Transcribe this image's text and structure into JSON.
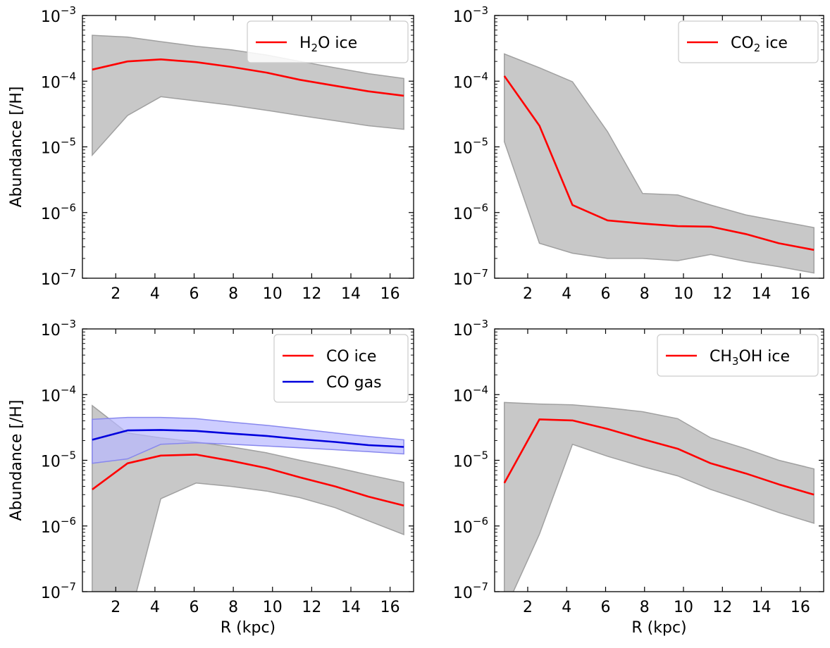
{
  "figure": {
    "type": "line",
    "layout": "2x2 grid of log-scale line charts with shaded ranges"
  },
  "chart_data": [
    {
      "type": "line",
      "id": "h2o",
      "title": "",
      "xlabel": "",
      "ylabel": "Abundance [/H]",
      "ylim_exp": [
        -7,
        -3
      ],
      "xlim": [
        0.3,
        17.2
      ],
      "xticks": [
        "2",
        "4",
        "6",
        "8",
        "10",
        "12",
        "14",
        "16"
      ],
      "yticks": [
        {
          "base": "10",
          "exp": "−7"
        },
        {
          "base": "10",
          "exp": "−6"
        },
        {
          "base": "10",
          "exp": "−5"
        },
        {
          "base": "10",
          "exp": "−4"
        },
        {
          "base": "10",
          "exp": "−3"
        }
      ],
      "legend_position": "top-right",
      "series": [
        {
          "name": "H2O ice",
          "label_parts": [
            "H",
            "2",
            "O ice"
          ],
          "color": "#ff0000",
          "band_color": "#c8c8c8",
          "band_edge": "#a0a0a0",
          "x": [
            0.8,
            2.6,
            4.3,
            6.1,
            7.9,
            9.7,
            11.4,
            13.2,
            14.9,
            16.7
          ],
          "y": [
            0.00015,
            0.0002,
            0.000215,
            0.000195,
            0.000165,
            0.000135,
            0.000105,
            8.5e-05,
            7e-05,
            6e-05
          ],
          "upper": [
            0.0005,
            0.00047,
            0.0004,
            0.00034,
            0.0003,
            0.00025,
            0.0002,
            0.00016,
            0.00013,
            0.00011
          ],
          "lower": [
            7.5e-06,
            3e-05,
            5.8e-05,
            5e-05,
            4.3e-05,
            3.6e-05,
            3e-05,
            2.5e-05,
            2.1e-05,
            1.85e-05
          ]
        }
      ]
    },
    {
      "type": "line",
      "id": "co2",
      "title": "",
      "xlabel": "",
      "ylabel": "",
      "ylim_exp": [
        -7,
        -3
      ],
      "xlim": [
        0.3,
        17.2
      ],
      "xticks": [
        "2",
        "4",
        "6",
        "8",
        "10",
        "12",
        "14",
        "16"
      ],
      "yticks": [
        {
          "base": "10",
          "exp": "−7"
        },
        {
          "base": "10",
          "exp": "−6"
        },
        {
          "base": "10",
          "exp": "−5"
        },
        {
          "base": "10",
          "exp": "−4"
        },
        {
          "base": "10",
          "exp": "−3"
        }
      ],
      "legend_position": "top-right",
      "series": [
        {
          "name": "CO2 ice",
          "label_parts": [
            "CO",
            "2",
            " ice"
          ],
          "color": "#ff0000",
          "band_color": "#c8c8c8",
          "band_edge": "#a0a0a0",
          "x": [
            0.8,
            2.6,
            4.3,
            6.1,
            7.9,
            9.7,
            11.4,
            13.2,
            14.9,
            16.7
          ],
          "y": [
            0.00012,
            2.1e-05,
            1.3e-06,
            7.6e-07,
            6.8e-07,
            6.2e-07,
            6.1e-07,
            4.7e-07,
            3.4e-07,
            2.7e-07
          ],
          "upper": [
            0.00026,
            0.00016,
            9.8e-05,
            1.7e-05,
            1.95e-06,
            1.85e-06,
            1.3e-06,
            9.2e-07,
            7.4e-07,
            5.9e-07
          ],
          "lower": [
            1.2e-05,
            3.4e-07,
            2.4e-07,
            2e-07,
            2e-07,
            1.85e-07,
            2.3e-07,
            1.8e-07,
            1.5e-07,
            1.2e-07
          ]
        }
      ]
    },
    {
      "type": "line",
      "id": "co",
      "title": "",
      "xlabel": "R (kpc)",
      "ylabel": "Abundance [/H]",
      "ylim_exp": [
        -7,
        -3
      ],
      "xlim": [
        0.3,
        17.2
      ],
      "xticks": [
        "2",
        "4",
        "6",
        "8",
        "10",
        "12",
        "14",
        "16"
      ],
      "yticks": [
        {
          "base": "10",
          "exp": "−7"
        },
        {
          "base": "10",
          "exp": "−6"
        },
        {
          "base": "10",
          "exp": "−5"
        },
        {
          "base": "10",
          "exp": "−4"
        },
        {
          "base": "10",
          "exp": "−3"
        }
      ],
      "legend_position": "top-right",
      "series": [
        {
          "name": "CO ice",
          "label_parts": [
            "CO ice",
            "",
            ""
          ],
          "color": "#ff0000",
          "band_color": "#c8c8c8",
          "band_edge": "#a0a0a0",
          "x": [
            0.8,
            2.6,
            4.3,
            6.1,
            7.9,
            9.7,
            11.4,
            13.2,
            14.9,
            16.7
          ],
          "y": [
            3.6e-06,
            9e-06,
            1.18e-05,
            1.22e-05,
            9.8e-06,
            7.6e-06,
            5.5e-06,
            4e-06,
            2.8e-06,
            2.05e-06
          ],
          "upper": [
            6.8e-05,
            2.6e-05,
            2.2e-05,
            1.9e-05,
            1.6e-05,
            1.3e-05,
            1e-05,
            7.8e-06,
            6e-06,
            4.6e-06
          ],
          "lower": [
            6e-08,
            3e-08,
            2.6e-06,
            4.5e-06,
            4e-06,
            3.4e-06,
            2.7e-06,
            1.9e-06,
            1.2e-06,
            7.4e-07
          ]
        },
        {
          "name": "CO gas",
          "label_parts": [
            "CO gas",
            "",
            ""
          ],
          "color": "#0000dd",
          "band_color": "#b8b8ff",
          "band_edge": "#8888ee",
          "band_opacity": 0.7,
          "x": [
            0.8,
            2.6,
            4.3,
            6.1,
            7.9,
            9.7,
            11.4,
            13.2,
            14.9,
            16.7
          ],
          "y": [
            2.05e-05,
            2.85e-05,
            2.9e-05,
            2.8e-05,
            2.55e-05,
            2.35e-05,
            2.1e-05,
            1.9e-05,
            1.7e-05,
            1.6e-05
          ],
          "upper": [
            4.2e-05,
            4.5e-05,
            4.5e-05,
            4.3e-05,
            3.8e-05,
            3.4e-05,
            3e-05,
            2.6e-05,
            2.3e-05,
            2.05e-05
          ],
          "lower": [
            9e-06,
            1.05e-05,
            1.75e-05,
            1.85e-05,
            1.75e-05,
            1.65e-05,
            1.55e-05,
            1.45e-05,
            1.35e-05,
            1.25e-05
          ]
        }
      ]
    },
    {
      "type": "line",
      "id": "ch3oh",
      "title": "",
      "xlabel": "R (kpc)",
      "ylabel": "",
      "ylim_exp": [
        -7,
        -3
      ],
      "xlim": [
        0.3,
        17.2
      ],
      "xticks": [
        "2",
        "4",
        "6",
        "8",
        "10",
        "12",
        "14",
        "16"
      ],
      "yticks": [
        {
          "base": "10",
          "exp": "−7"
        },
        {
          "base": "10",
          "exp": "−6"
        },
        {
          "base": "10",
          "exp": "−5"
        },
        {
          "base": "10",
          "exp": "−4"
        },
        {
          "base": "10",
          "exp": "−3"
        }
      ],
      "legend_position": "top-right",
      "series": [
        {
          "name": "CH3OH ice",
          "label_parts": [
            "CH",
            "3",
            "OH ice"
          ],
          "color": "#ff0000",
          "band_color": "#c8c8c8",
          "band_edge": "#a0a0a0",
          "x": [
            0.8,
            2.6,
            4.3,
            6.1,
            7.9,
            9.7,
            11.4,
            13.2,
            14.9,
            16.7
          ],
          "y": [
            4.5e-06,
            4.2e-05,
            4.05e-05,
            3e-05,
            2.1e-05,
            1.5e-05,
            9e-06,
            6.3e-06,
            4.3e-06,
            3e-06
          ],
          "upper": [
            7.6e-05,
            7.2e-05,
            7e-05,
            6.3e-05,
            5.5e-05,
            4.3e-05,
            2.2e-05,
            1.5e-05,
            1e-05,
            7.4e-06
          ],
          "lower": [
            5e-08,
            7.5e-07,
            1.75e-05,
            1.15e-05,
            8e-06,
            5.8e-06,
            3.6e-06,
            2.4e-06,
            1.6e-06,
            1.1e-06
          ]
        }
      ]
    }
  ]
}
